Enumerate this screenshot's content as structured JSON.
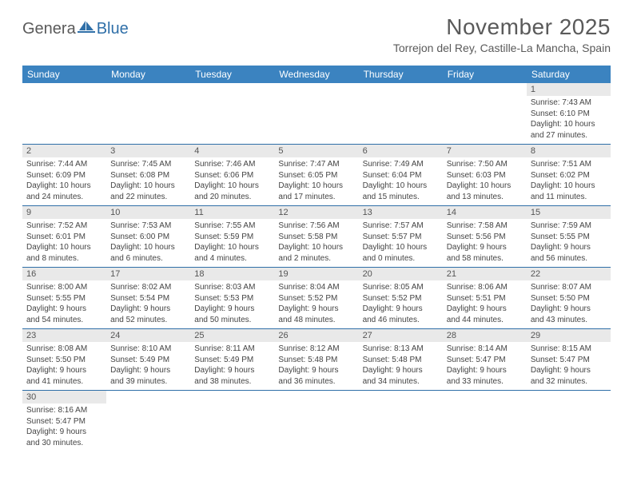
{
  "brand": {
    "part1": "Genera",
    "part2": "Blue"
  },
  "title": "November 2025",
  "subtitle": "Torrejon del Rey, Castille-La Mancha, Spain",
  "colors": {
    "header_bg": "#3b83c0",
    "header_text": "#ffffff",
    "rule": "#2f6fa8",
    "daynum_bg": "#e9e9e9",
    "text": "#444444",
    "brand_gray": "#5a5a5a",
    "brand_blue": "#2f6fa8"
  },
  "dow": [
    "Sunday",
    "Monday",
    "Tuesday",
    "Wednesday",
    "Thursday",
    "Friday",
    "Saturday"
  ],
  "weeks": [
    [
      null,
      null,
      null,
      null,
      null,
      null,
      {
        "n": "1",
        "sr": "Sunrise: 7:43 AM",
        "ss": "Sunset: 6:10 PM",
        "d1": "Daylight: 10 hours",
        "d2": "and 27 minutes."
      }
    ],
    [
      {
        "n": "2",
        "sr": "Sunrise: 7:44 AM",
        "ss": "Sunset: 6:09 PM",
        "d1": "Daylight: 10 hours",
        "d2": "and 24 minutes."
      },
      {
        "n": "3",
        "sr": "Sunrise: 7:45 AM",
        "ss": "Sunset: 6:08 PM",
        "d1": "Daylight: 10 hours",
        "d2": "and 22 minutes."
      },
      {
        "n": "4",
        "sr": "Sunrise: 7:46 AM",
        "ss": "Sunset: 6:06 PM",
        "d1": "Daylight: 10 hours",
        "d2": "and 20 minutes."
      },
      {
        "n": "5",
        "sr": "Sunrise: 7:47 AM",
        "ss": "Sunset: 6:05 PM",
        "d1": "Daylight: 10 hours",
        "d2": "and 17 minutes."
      },
      {
        "n": "6",
        "sr": "Sunrise: 7:49 AM",
        "ss": "Sunset: 6:04 PM",
        "d1": "Daylight: 10 hours",
        "d2": "and 15 minutes."
      },
      {
        "n": "7",
        "sr": "Sunrise: 7:50 AM",
        "ss": "Sunset: 6:03 PM",
        "d1": "Daylight: 10 hours",
        "d2": "and 13 minutes."
      },
      {
        "n": "8",
        "sr": "Sunrise: 7:51 AM",
        "ss": "Sunset: 6:02 PM",
        "d1": "Daylight: 10 hours",
        "d2": "and 11 minutes."
      }
    ],
    [
      {
        "n": "9",
        "sr": "Sunrise: 7:52 AM",
        "ss": "Sunset: 6:01 PM",
        "d1": "Daylight: 10 hours",
        "d2": "and 8 minutes."
      },
      {
        "n": "10",
        "sr": "Sunrise: 7:53 AM",
        "ss": "Sunset: 6:00 PM",
        "d1": "Daylight: 10 hours",
        "d2": "and 6 minutes."
      },
      {
        "n": "11",
        "sr": "Sunrise: 7:55 AM",
        "ss": "Sunset: 5:59 PM",
        "d1": "Daylight: 10 hours",
        "d2": "and 4 minutes."
      },
      {
        "n": "12",
        "sr": "Sunrise: 7:56 AM",
        "ss": "Sunset: 5:58 PM",
        "d1": "Daylight: 10 hours",
        "d2": "and 2 minutes."
      },
      {
        "n": "13",
        "sr": "Sunrise: 7:57 AM",
        "ss": "Sunset: 5:57 PM",
        "d1": "Daylight: 10 hours",
        "d2": "and 0 minutes."
      },
      {
        "n": "14",
        "sr": "Sunrise: 7:58 AM",
        "ss": "Sunset: 5:56 PM",
        "d1": "Daylight: 9 hours",
        "d2": "and 58 minutes."
      },
      {
        "n": "15",
        "sr": "Sunrise: 7:59 AM",
        "ss": "Sunset: 5:55 PM",
        "d1": "Daylight: 9 hours",
        "d2": "and 56 minutes."
      }
    ],
    [
      {
        "n": "16",
        "sr": "Sunrise: 8:00 AM",
        "ss": "Sunset: 5:55 PM",
        "d1": "Daylight: 9 hours",
        "d2": "and 54 minutes."
      },
      {
        "n": "17",
        "sr": "Sunrise: 8:02 AM",
        "ss": "Sunset: 5:54 PM",
        "d1": "Daylight: 9 hours",
        "d2": "and 52 minutes."
      },
      {
        "n": "18",
        "sr": "Sunrise: 8:03 AM",
        "ss": "Sunset: 5:53 PM",
        "d1": "Daylight: 9 hours",
        "d2": "and 50 minutes."
      },
      {
        "n": "19",
        "sr": "Sunrise: 8:04 AM",
        "ss": "Sunset: 5:52 PM",
        "d1": "Daylight: 9 hours",
        "d2": "and 48 minutes."
      },
      {
        "n": "20",
        "sr": "Sunrise: 8:05 AM",
        "ss": "Sunset: 5:52 PM",
        "d1": "Daylight: 9 hours",
        "d2": "and 46 minutes."
      },
      {
        "n": "21",
        "sr": "Sunrise: 8:06 AM",
        "ss": "Sunset: 5:51 PM",
        "d1": "Daylight: 9 hours",
        "d2": "and 44 minutes."
      },
      {
        "n": "22",
        "sr": "Sunrise: 8:07 AM",
        "ss": "Sunset: 5:50 PM",
        "d1": "Daylight: 9 hours",
        "d2": "and 43 minutes."
      }
    ],
    [
      {
        "n": "23",
        "sr": "Sunrise: 8:08 AM",
        "ss": "Sunset: 5:50 PM",
        "d1": "Daylight: 9 hours",
        "d2": "and 41 minutes."
      },
      {
        "n": "24",
        "sr": "Sunrise: 8:10 AM",
        "ss": "Sunset: 5:49 PM",
        "d1": "Daylight: 9 hours",
        "d2": "and 39 minutes."
      },
      {
        "n": "25",
        "sr": "Sunrise: 8:11 AM",
        "ss": "Sunset: 5:49 PM",
        "d1": "Daylight: 9 hours",
        "d2": "and 38 minutes."
      },
      {
        "n": "26",
        "sr": "Sunrise: 8:12 AM",
        "ss": "Sunset: 5:48 PM",
        "d1": "Daylight: 9 hours",
        "d2": "and 36 minutes."
      },
      {
        "n": "27",
        "sr": "Sunrise: 8:13 AM",
        "ss": "Sunset: 5:48 PM",
        "d1": "Daylight: 9 hours",
        "d2": "and 34 minutes."
      },
      {
        "n": "28",
        "sr": "Sunrise: 8:14 AM",
        "ss": "Sunset: 5:47 PM",
        "d1": "Daylight: 9 hours",
        "d2": "and 33 minutes."
      },
      {
        "n": "29",
        "sr": "Sunrise: 8:15 AM",
        "ss": "Sunset: 5:47 PM",
        "d1": "Daylight: 9 hours",
        "d2": "and 32 minutes."
      }
    ],
    [
      {
        "n": "30",
        "sr": "Sunrise: 8:16 AM",
        "ss": "Sunset: 5:47 PM",
        "d1": "Daylight: 9 hours",
        "d2": "and 30 minutes."
      },
      null,
      null,
      null,
      null,
      null,
      null
    ]
  ]
}
